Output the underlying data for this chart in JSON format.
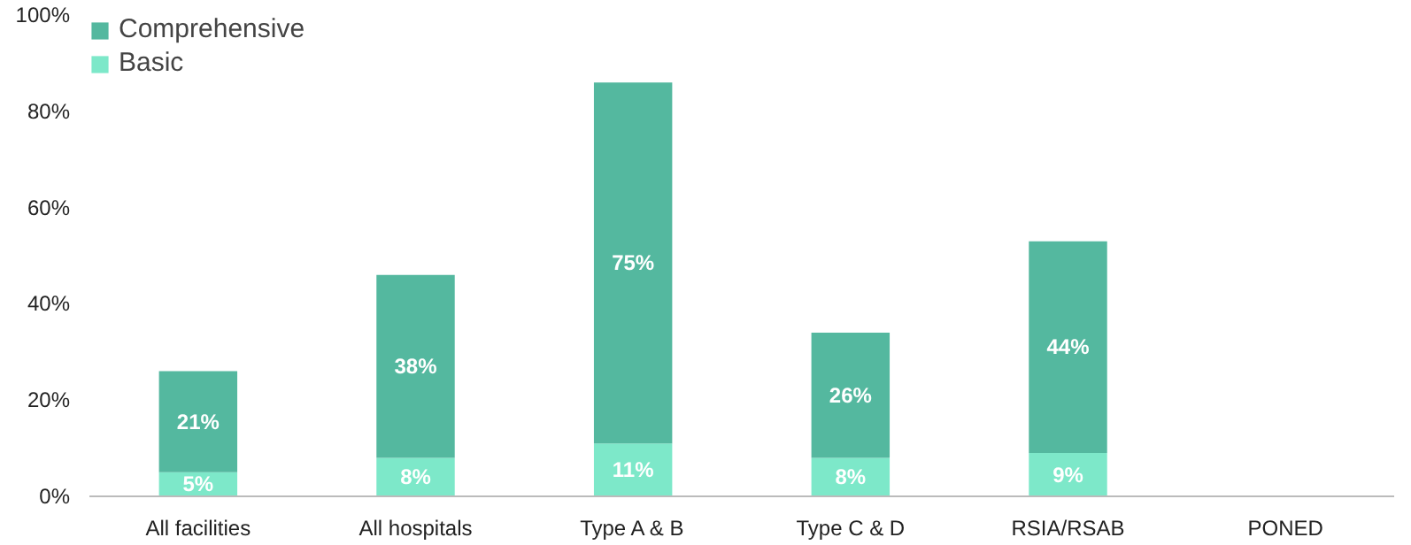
{
  "chart_data": {
    "type": "bar",
    "stacked": true,
    "legend": "top left",
    "grid": false,
    "categories": [
      "All facilities",
      "All hospitals",
      "Type A & B",
      "Type C & D",
      "RSIA/RSAB",
      "PONED"
    ],
    "series": [
      {
        "name": "Basic",
        "color": "#7de8c9",
        "values": [
          5,
          8,
          11,
          8,
          9,
          null
        ],
        "value_labels": [
          "5%",
          "8%",
          "11%",
          "8%",
          "9%",
          null
        ]
      },
      {
        "name": "Comprehensive",
        "color": "#54b89f",
        "values": [
          21,
          38,
          75,
          26,
          44,
          null
        ],
        "value_labels": [
          "21%",
          "38%",
          "75%",
          "26%",
          "44%",
          null
        ]
      }
    ],
    "ylim": [
      0,
      100
    ],
    "yticks": [
      {
        "value": 0,
        "label": "0%"
      },
      {
        "value": 20,
        "label": "20%"
      },
      {
        "value": 40,
        "label": "40%"
      },
      {
        "value": 60,
        "label": "60%"
      },
      {
        "value": 80,
        "label": "80%"
      },
      {
        "value": 100,
        "label": "100%"
      }
    ]
  }
}
